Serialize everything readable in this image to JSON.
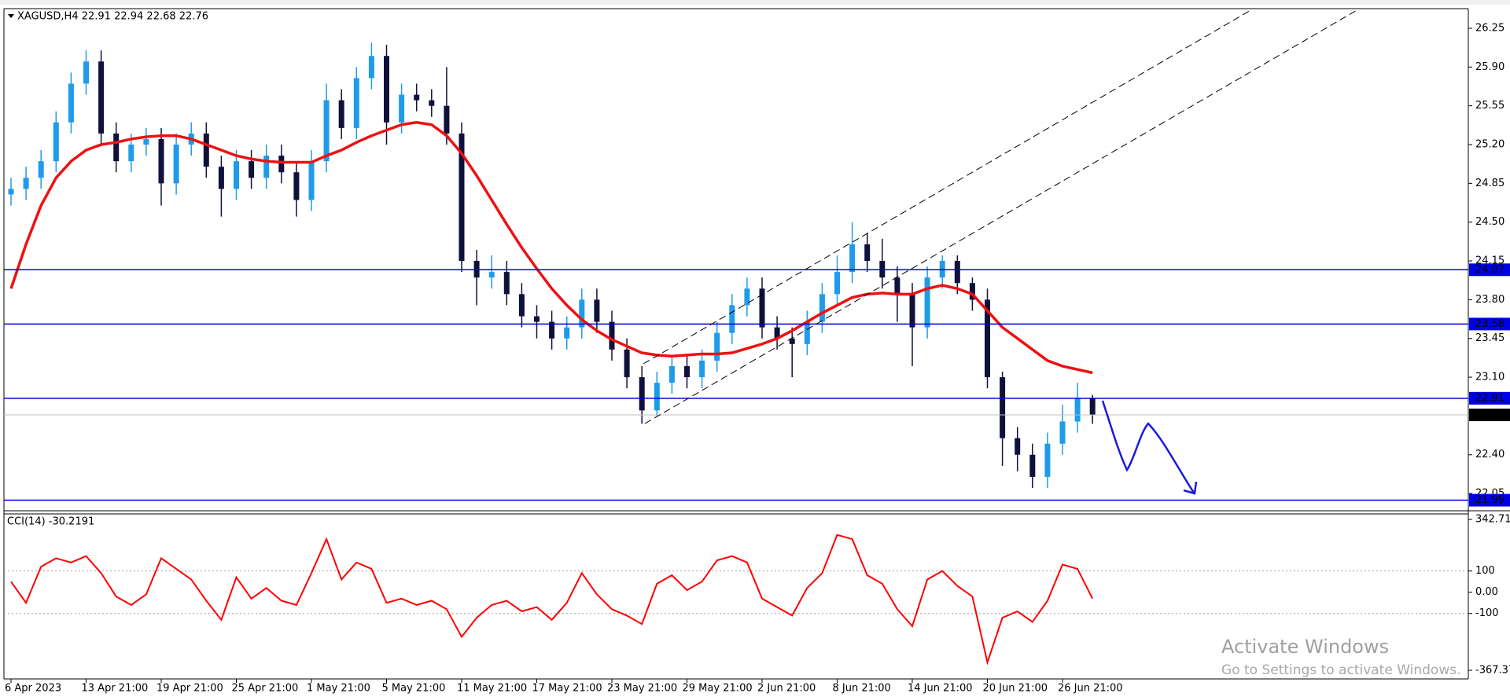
{
  "chart_data": [
    {
      "type": "candlestick",
      "title": "XAGUSD,H4  22.91 22.94 22.68 22.76",
      "categories": [
        "6 Apr 2023",
        null,
        null,
        null,
        null,
        "13 Apr 21:00",
        null,
        null,
        null,
        null,
        "19 Apr 21:00",
        null,
        null,
        null,
        null,
        "25 Apr 21:00",
        null,
        null,
        null,
        null,
        "1 May 21:00",
        null,
        null,
        null,
        null,
        "5 May 21:00",
        null,
        null,
        null,
        null,
        "11 May 21:00",
        null,
        null,
        null,
        null,
        "17 May 21:00",
        null,
        null,
        null,
        null,
        "23 May 21:00",
        null,
        null,
        null,
        null,
        "29 May 21:00",
        null,
        null,
        null,
        null,
        "2 Jun 21:00",
        null,
        null,
        null,
        null,
        "8 Jun 21:00",
        null,
        null,
        null,
        null,
        "14 Jun 21:00",
        null,
        null,
        null,
        null,
        "20 Jun 21:00",
        null,
        null,
        null,
        null,
        "26 Jun 21:00",
        null,
        null
      ],
      "open": [
        24.75,
        24.8,
        24.9,
        25.05,
        25.4,
        25.75,
        25.95,
        25.3,
        25.05,
        25.2,
        25.25,
        24.85,
        25.2,
        25.3,
        25.0,
        24.8,
        25.05,
        24.9,
        25.1,
        24.95,
        24.7,
        25.05,
        25.6,
        25.35,
        25.8,
        26.0,
        25.4,
        25.65,
        25.6,
        25.55,
        25.3,
        24.15,
        24.0,
        24.05,
        23.85,
        23.65,
        23.6,
        23.45,
        23.55,
        23.8,
        23.6,
        23.35,
        23.1,
        22.8,
        23.05,
        23.2,
        23.1,
        23.25,
        23.5,
        23.75,
        23.9,
        23.55,
        23.45,
        23.4,
        23.6,
        23.85,
        24.05,
        24.3,
        24.15,
        24.0,
        23.85,
        23.55,
        24.0,
        24.15,
        23.95,
        23.8,
        23.1,
        22.55,
        22.4,
        22.2,
        22.5,
        22.7,
        22.91
      ],
      "high": [
        24.9,
        25.0,
        25.15,
        25.5,
        25.85,
        26.05,
        26.05,
        25.4,
        25.3,
        25.35,
        25.35,
        25.3,
        25.4,
        25.4,
        25.1,
        25.15,
        25.15,
        25.2,
        25.2,
        25.05,
        25.15,
        25.75,
        25.7,
        25.9,
        26.12,
        26.1,
        25.75,
        25.75,
        25.7,
        25.9,
        25.4,
        24.25,
        24.2,
        24.15,
        23.95,
        23.75,
        23.7,
        23.65,
        23.9,
        23.9,
        23.7,
        23.45,
        23.2,
        23.15,
        23.3,
        23.3,
        23.35,
        23.6,
        23.85,
        24.0,
        24.0,
        23.65,
        23.55,
        23.7,
        23.95,
        24.2,
        24.5,
        24.4,
        24.35,
        24.1,
        23.95,
        24.1,
        24.2,
        24.2,
        24.0,
        23.9,
        23.15,
        22.65,
        22.5,
        22.6,
        22.85,
        23.05,
        22.94
      ],
      "low": [
        24.65,
        24.7,
        24.8,
        24.95,
        25.3,
        25.65,
        25.2,
        24.95,
        24.95,
        25.1,
        24.65,
        24.75,
        25.1,
        24.9,
        24.55,
        24.7,
        24.8,
        24.8,
        24.85,
        24.55,
        24.6,
        24.95,
        25.25,
        25.25,
        25.7,
        25.2,
        25.3,
        25.5,
        25.45,
        25.2,
        24.05,
        23.75,
        23.9,
        23.75,
        23.55,
        23.45,
        23.35,
        23.35,
        23.45,
        23.5,
        23.25,
        23.0,
        22.68,
        22.75,
        22.95,
        23.0,
        23.0,
        23.15,
        23.4,
        23.65,
        23.45,
        23.35,
        23.1,
        23.3,
        23.5,
        23.75,
        23.95,
        24.05,
        23.9,
        23.6,
        23.2,
        23.45,
        23.9,
        23.85,
        23.7,
        23.0,
        22.3,
        22.25,
        22.1,
        22.1,
        22.4,
        22.6,
        22.68
      ],
      "close": [
        24.8,
        24.9,
        25.05,
        25.4,
        25.75,
        25.95,
        25.3,
        25.05,
        25.2,
        25.25,
        24.85,
        25.2,
        25.3,
        25.0,
        24.8,
        25.05,
        24.9,
        25.1,
        24.95,
        24.7,
        25.05,
        25.6,
        25.35,
        25.8,
        26.0,
        25.4,
        25.65,
        25.6,
        25.55,
        25.3,
        24.15,
        24.0,
        24.05,
        23.85,
        23.65,
        23.6,
        23.45,
        23.55,
        23.8,
        23.6,
        23.35,
        23.1,
        22.8,
        23.05,
        23.2,
        23.1,
        23.25,
        23.5,
        23.75,
        23.9,
        23.55,
        23.45,
        23.4,
        23.6,
        23.85,
        24.05,
        24.3,
        24.15,
        24.0,
        23.85,
        23.55,
        24.0,
        24.15,
        23.95,
        23.8,
        23.1,
        22.55,
        22.4,
        22.2,
        22.5,
        22.7,
        22.91,
        22.76
      ],
      "up_color": "#1e9be9",
      "down_color": "#10103c",
      "series": [
        {
          "color": "#ee1111",
          "values": [
            23.9,
            24.3,
            24.65,
            24.9,
            25.05,
            25.15,
            25.2,
            25.22,
            25.25,
            25.27,
            25.28,
            25.28,
            25.25,
            25.2,
            25.15,
            25.1,
            25.07,
            25.05,
            25.04,
            25.04,
            25.04,
            25.1,
            25.15,
            25.22,
            25.28,
            25.33,
            25.38,
            25.4,
            25.38,
            25.28,
            25.12,
            24.92,
            24.7,
            24.48,
            24.27,
            24.08,
            23.9,
            23.75,
            23.62,
            23.52,
            23.44,
            23.38,
            23.32,
            23.3,
            23.29,
            23.3,
            23.31,
            23.31,
            23.32,
            23.36,
            23.4,
            23.45,
            23.52,
            23.6,
            23.68,
            23.75,
            23.82,
            23.85,
            23.86,
            23.85,
            23.85,
            23.9,
            23.93,
            23.9,
            23.85,
            23.7,
            23.55,
            23.45,
            23.35,
            23.25,
            23.2,
            23.17,
            23.14
          ]
        }
      ],
      "levels": [
        24.07,
        23.58,
        22.91,
        21.99
      ],
      "level_color": "#0000e6",
      "current_price": 22.76,
      "ylim": [
        21.93,
        26.42
      ],
      "yticks": [
        26.25,
        {
          "value": 25.9,
          "label": "25.90"
        },
        25.55,
        {
          "value": 25.2,
          "label": "25.20"
        },
        24.85,
        {
          "value": 24.5,
          "label": "24.50"
        },
        24.15,
        {
          "value": 23.8,
          "label": "23.80"
        },
        23.45,
        {
          "value": 23.1,
          "label": "23.10"
        },
        {
          "value": 22.4,
          "label": "22.40"
        },
        22.05
      ]
    },
    {
      "type": "line",
      "title": "CCI(14) -30.2191",
      "color": "#ff0000",
      "values": [
        50,
        -50,
        120,
        160,
        140,
        170,
        90,
        -20,
        -60,
        -10,
        160,
        110,
        60,
        -40,
        -130,
        70,
        -30,
        20,
        -40,
        -60,
        90,
        250,
        60,
        140,
        110,
        -50,
        -30,
        -60,
        -40,
        -80,
        -210,
        -120,
        -60,
        -40,
        -90,
        -70,
        -130,
        -50,
        90,
        -10,
        -80,
        -110,
        -150,
        40,
        80,
        10,
        50,
        150,
        170,
        140,
        -30,
        -70,
        -110,
        20,
        90,
        270,
        250,
        80,
        40,
        -80,
        -160,
        60,
        100,
        30,
        -20,
        -330,
        -120,
        -90,
        -140,
        -40,
        130,
        110,
        -30.2191
      ],
      "ylim": [
        -367.374,
        342.715
      ],
      "yticks": [
        342.715,
        100,
        {
          "value": 0,
          "label": "0.00"
        },
        -100,
        -367.374
      ],
      "level_lines": [
        100,
        -100
      ]
    }
  ],
  "watermark": {
    "title": "Activate Windows",
    "subtitle": "Go to Settings to activate Windows."
  }
}
